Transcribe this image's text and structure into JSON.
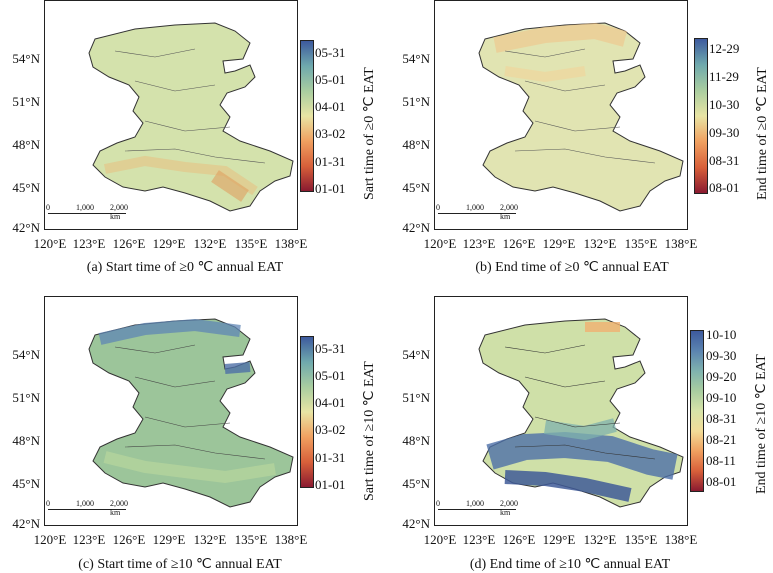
{
  "lat_labels": [
    "54°N",
    "51°N",
    "48°N",
    "45°N",
    "42°N"
  ],
  "lon_labels": [
    "120°E",
    "123°E",
    "126°E",
    "129°E",
    "132°E",
    "135°E",
    "138°E"
  ],
  "scale_bar": {
    "zero": "0",
    "mid": "1,000",
    "end": "2,000 km"
  },
  "panels": [
    {
      "caption": "(a) Start time of ≥0 ℃ annual EAT",
      "colorbar_title": "Sart time of ≥0 ℃ EAT",
      "ticks": [
        "05-31",
        "05-01",
        "04-01",
        "03-02",
        "01-31",
        "01-01"
      ],
      "colors": [
        "#3d5a9e",
        "#6fa9ad",
        "#a9cda0",
        "#e8e4a4",
        "#f0a060",
        "#d8603a",
        "#8a1a30"
      ],
      "fill": "#d4e2ac"
    },
    {
      "caption": "(b) End time of ≥0 ℃ annual EAT",
      "colorbar_title": "End time of ≥0 ℃ EAT",
      "ticks": [
        "12-29",
        "11-29",
        "10-30",
        "09-30",
        "08-31",
        "08-01"
      ],
      "colors": [
        "#3d5a9e",
        "#6fa9ad",
        "#a9cda0",
        "#e8e4a4",
        "#f0a060",
        "#d8603a",
        "#8a1a30"
      ],
      "fill": "#e1e4b2"
    },
    {
      "caption": "(c) Start time of ≥10 ℃ annual EAT",
      "colorbar_title": "Sart time of ≥10 ℃ EAT",
      "ticks": [
        "05-31",
        "05-01",
        "04-01",
        "03-02",
        "01-31",
        "01-01"
      ],
      "colors": [
        "#3d5a9e",
        "#6fa9ad",
        "#a9cda0",
        "#e8e4a4",
        "#f0a060",
        "#d8603a",
        "#8a1a30"
      ],
      "fill": "#9cc59a"
    },
    {
      "caption": "(d) End time of ≥10 ℃ annual EAT",
      "colorbar_title": "End time of ≥10 ℃ EAT",
      "ticks": [
        "10-10",
        "09-30",
        "09-20",
        "09-10",
        "08-31",
        "08-21",
        "08-11",
        "08-01"
      ],
      "colors": [
        "#3d5a9e",
        "#5b84b0",
        "#7fb2ae",
        "#a9cda0",
        "#d7e3a8",
        "#f2dc98",
        "#f0a060",
        "#d8603a",
        "#8a1a30"
      ],
      "fill": "#cfe0a8"
    }
  ]
}
